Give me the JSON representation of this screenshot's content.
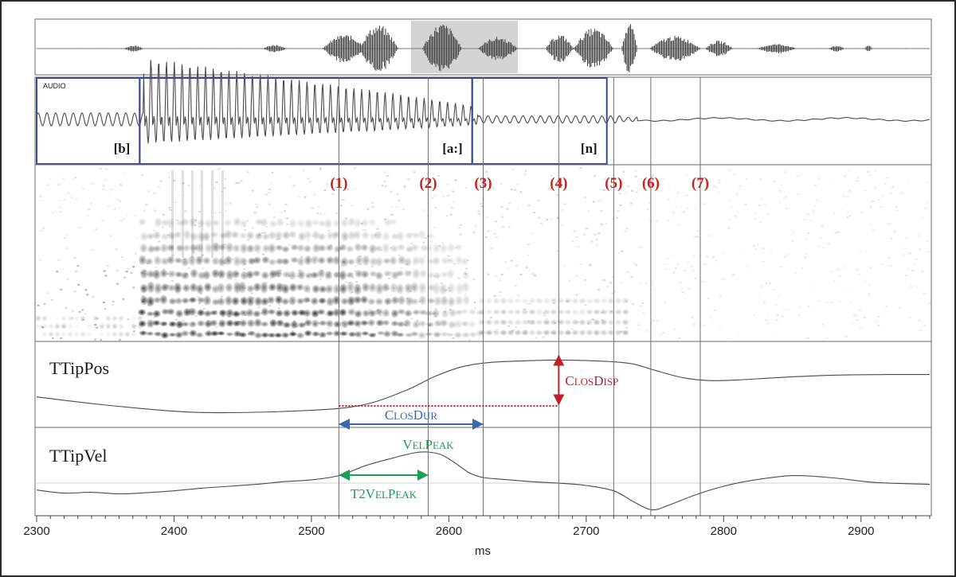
{
  "chart_data": {
    "type": "line",
    "title": "",
    "xlabel": "ms",
    "ylabel": "",
    "xlim": [
      2300,
      2950
    ],
    "x_ticks": [
      2300,
      2400,
      2500,
      2600,
      2700,
      2800,
      2900
    ],
    "audio_label": "AUDIO",
    "segments": [
      {
        "label": "[b]",
        "start": 2300,
        "end": 2375
      },
      {
        "label": "[a:]",
        "start": 2375,
        "end": 2617
      },
      {
        "label": "[n]",
        "start": 2617,
        "end": 2715
      }
    ],
    "events": [
      {
        "label": "(1)",
        "x": 2520
      },
      {
        "label": "(2)",
        "x": 2585
      },
      {
        "label": "(3)",
        "x": 2625
      },
      {
        "label": "(4)",
        "x": 2680
      },
      {
        "label": "(5)",
        "x": 2720
      },
      {
        "label": "(6)",
        "x": 2747
      },
      {
        "label": "(7)",
        "x": 2783
      }
    ],
    "series": [
      {
        "name": "TTipPos",
        "x": [
          2300,
          2340,
          2380,
          2410,
          2440,
          2480,
          2520,
          2545,
          2570,
          2590,
          2610,
          2630,
          2660,
          2680,
          2700,
          2720,
          2735,
          2750,
          2770,
          2790,
          2810,
          2840,
          2880,
          2920,
          2950
        ],
        "y": [
          0.28,
          0.17,
          0.08,
          0.03,
          0.02,
          0.04,
          0.09,
          0.19,
          0.4,
          0.62,
          0.78,
          0.85,
          0.88,
          0.89,
          0.88,
          0.86,
          0.82,
          0.72,
          0.6,
          0.55,
          0.56,
          0.6,
          0.64,
          0.65,
          0.65
        ]
      },
      {
        "name": "TTipVel",
        "x": [
          2300,
          2320,
          2340,
          2360,
          2380,
          2400,
          2420,
          2440,
          2460,
          2480,
          2500,
          2520,
          2540,
          2560,
          2575,
          2585,
          2595,
          2605,
          2615,
          2625,
          2640,
          2660,
          2680,
          2700,
          2720,
          2735,
          2748,
          2760,
          2780,
          2800,
          2820,
          2850,
          2880,
          2910,
          2950
        ],
        "y": [
          0.0,
          -0.08,
          -0.06,
          -0.1,
          -0.07,
          -0.02,
          0.05,
          0.1,
          0.15,
          0.22,
          0.27,
          0.38,
          0.65,
          0.85,
          0.98,
          1.0,
          0.92,
          0.7,
          0.45,
          0.33,
          0.28,
          0.22,
          0.18,
          0.12,
          -0.02,
          -0.32,
          -0.52,
          -0.4,
          -0.12,
          0.1,
          0.25,
          0.38,
          0.32,
          0.2,
          0.15
        ]
      }
    ],
    "annotations": [
      {
        "label": "ClosDisp",
        "first": "C",
        "rest1": "LOS",
        "second": "D",
        "rest2": "ISP",
        "color": "#c0202a"
      },
      {
        "label": "ClosDur",
        "first": "C",
        "rest1": "LOS",
        "second": "D",
        "rest2": "UR",
        "color": "#3a6aaa"
      },
      {
        "label": "VelPeak",
        "first": "V",
        "rest1": "EL",
        "second": "P",
        "rest2": "EAK",
        "color": "#1aa050"
      },
      {
        "label": "T2VelPeak",
        "first": "T2V",
        "rest1": "EL",
        "second": "P",
        "rest2": "EAK",
        "color": "#1aa050"
      }
    ],
    "colors": {
      "event": "#cc1f1f",
      "segment_box": "#3a4a9a",
      "closdisp": "#c0202a",
      "closdur": "#3a6aaa",
      "velpeak": "#1aa050"
    }
  }
}
